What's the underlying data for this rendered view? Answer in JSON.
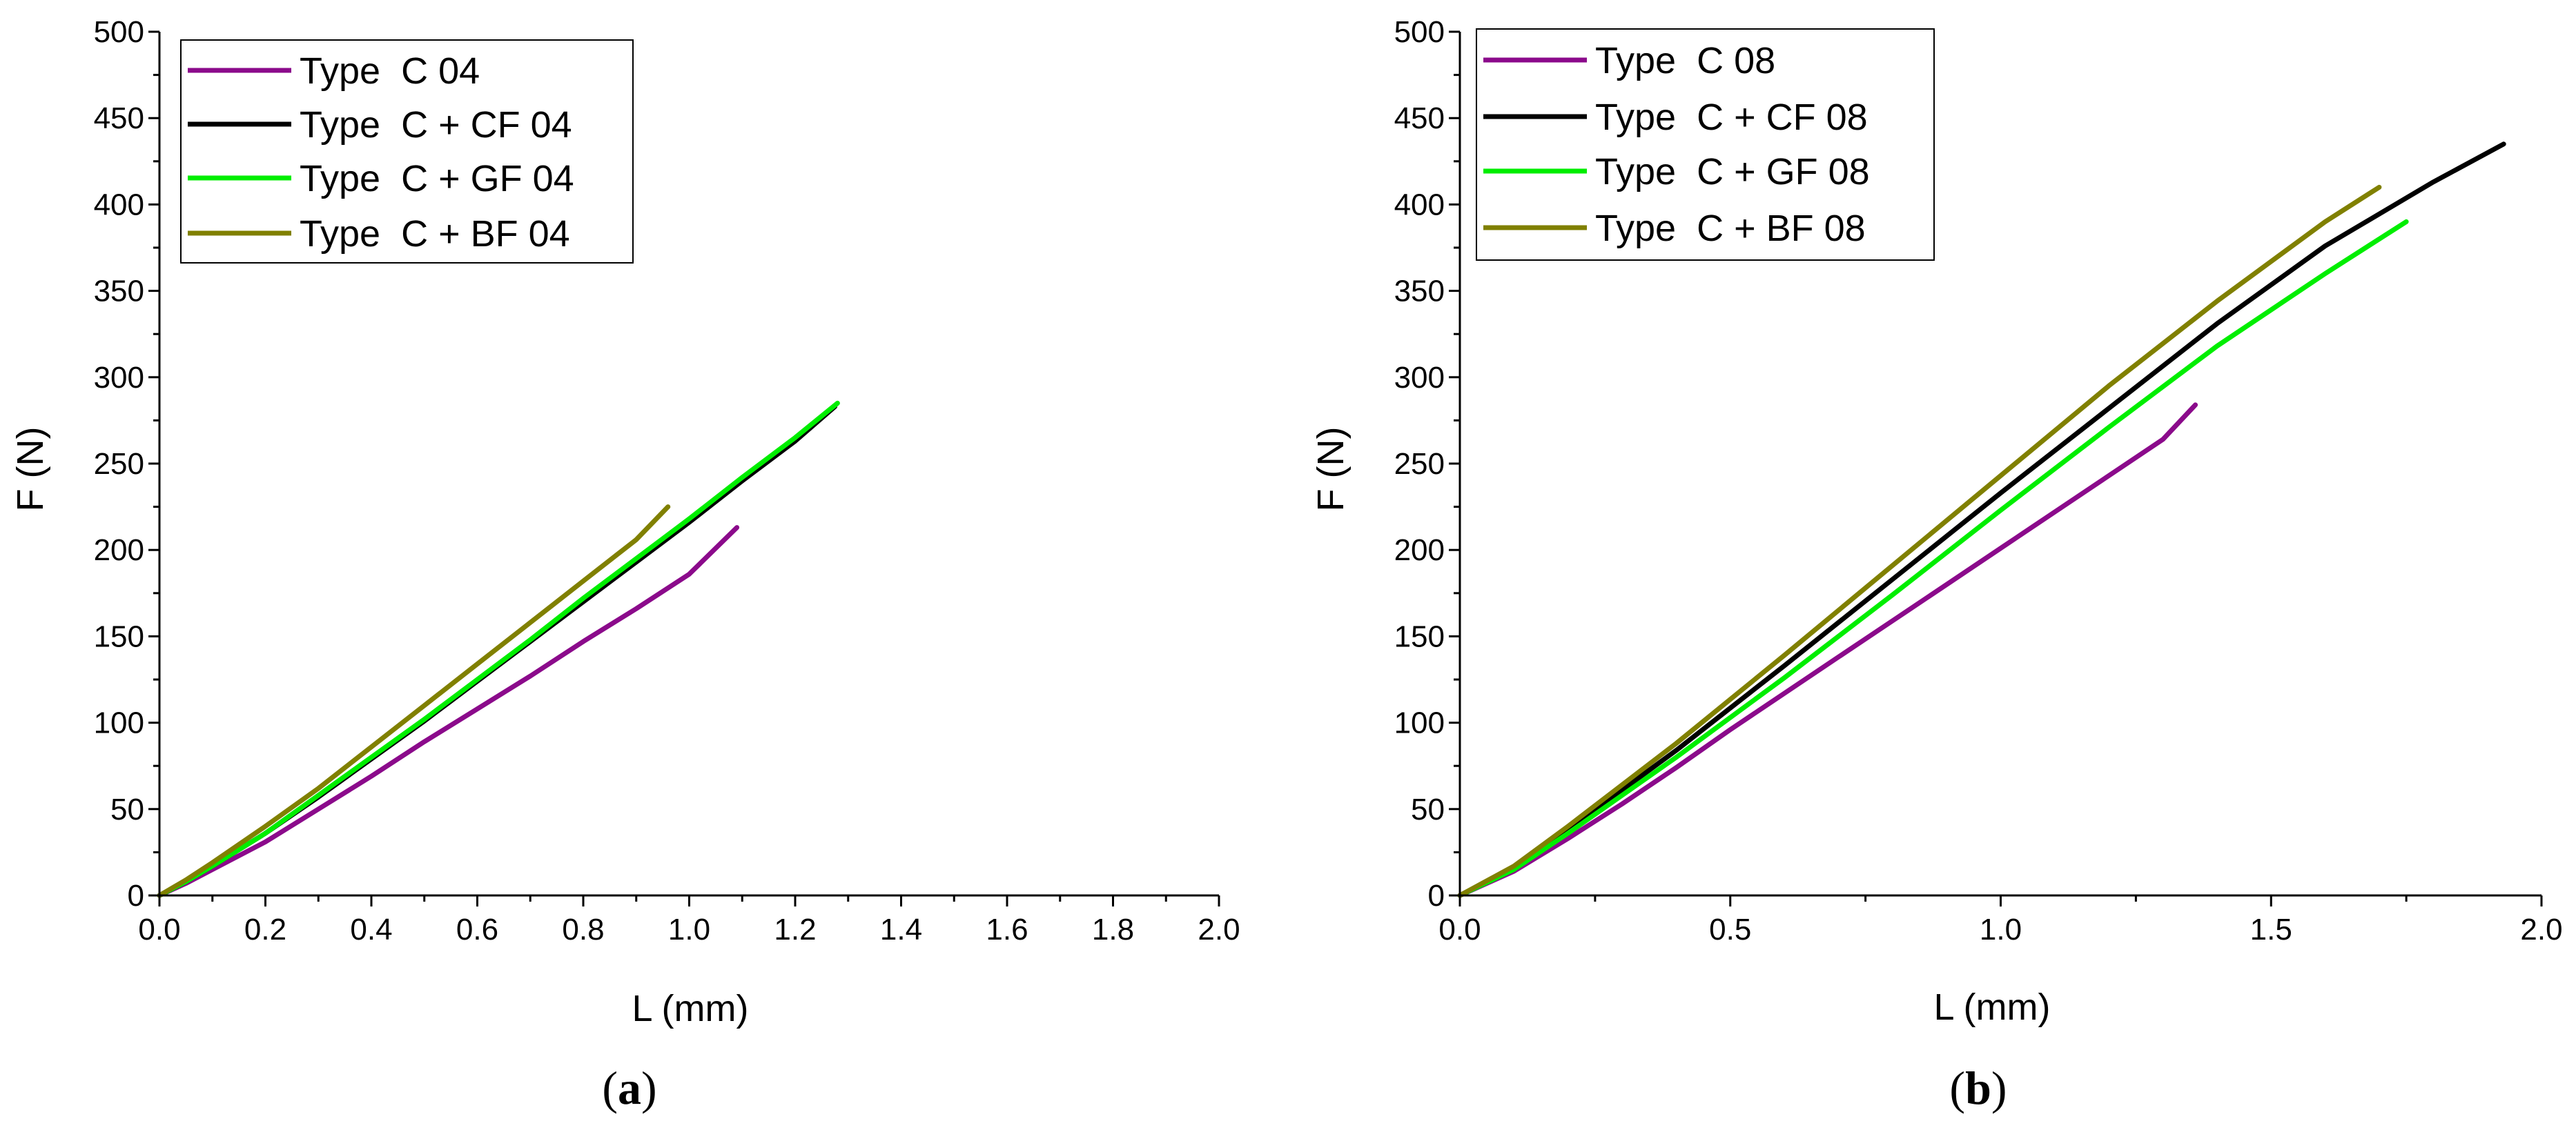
{
  "chart_data": [
    {
      "type": "line",
      "panel_label": "(a)",
      "panel_letter": "a",
      "xlabel": "L (mm)",
      "ylabel": "F (N)",
      "xlim": [
        0,
        2.0
      ],
      "ylim": [
        0,
        500
      ],
      "xticks": [
        "0.0",
        "0.2",
        "0.4",
        "0.6",
        "0.8",
        "1.0",
        "1.2",
        "1.4",
        "1.6",
        "1.8",
        "2.0"
      ],
      "xtick_values": [
        0,
        0.2,
        0.4,
        0.6,
        0.8,
        1.0,
        1.2,
        1.4,
        1.6,
        1.8,
        2.0
      ],
      "xminor_values": [
        0.1,
        0.3,
        0.5,
        0.7,
        0.9,
        1.1,
        1.3,
        1.5,
        1.7,
        1.9
      ],
      "yticks": [
        "0",
        "50",
        "100",
        "150",
        "200",
        "250",
        "300",
        "350",
        "400",
        "450",
        "500"
      ],
      "ytick_values": [
        0,
        50,
        100,
        150,
        200,
        250,
        300,
        350,
        400,
        450,
        500
      ],
      "yminor_values": [
        25,
        75,
        125,
        175,
        225,
        275,
        325,
        375,
        425,
        475
      ],
      "grid": false,
      "legend_position": "top-left",
      "series": [
        {
          "name": "Type  C 04",
          "color": "#8B0A8B",
          "x": [
            0,
            0.05,
            0.1,
            0.2,
            0.3,
            0.4,
            0.5,
            0.6,
            0.7,
            0.8,
            0.9,
            1.0,
            1.09
          ],
          "y": [
            0,
            7,
            15,
            31,
            50,
            69,
            89,
            108,
            127,
            147,
            166,
            186,
            213
          ]
        },
        {
          "name": "Type  C + CF 04",
          "color": "#000000",
          "x": [
            0,
            0.05,
            0.1,
            0.2,
            0.3,
            0.4,
            0.5,
            0.6,
            0.7,
            0.8,
            0.9,
            1.0,
            1.1,
            1.2,
            1.275
          ],
          "y": [
            0,
            8,
            17,
            36,
            57,
            79,
            101,
            124,
            147,
            170,
            193,
            216,
            240,
            263,
            283
          ]
        },
        {
          "name": "Type  C + GF 04",
          "color": "#00EE00",
          "x": [
            0,
            0.05,
            0.1,
            0.2,
            0.3,
            0.4,
            0.5,
            0.6,
            0.7,
            0.8,
            0.9,
            1.0,
            1.1,
            1.2,
            1.28
          ],
          "y": [
            0,
            8,
            17,
            36,
            58,
            80,
            102,
            125,
            148,
            172,
            195,
            218,
            242,
            265,
            285
          ]
        },
        {
          "name": "Type  C + BF 04",
          "color": "#808000",
          "x": [
            0,
            0.05,
            0.1,
            0.2,
            0.3,
            0.4,
            0.5,
            0.6,
            0.7,
            0.8,
            0.9,
            0.96
          ],
          "y": [
            0,
            9,
            19,
            40,
            62,
            86,
            110,
            134,
            158,
            182,
            206,
            225
          ]
        }
      ]
    },
    {
      "type": "line",
      "panel_label": "(b)",
      "panel_letter": "b",
      "xlabel": "L (mm)",
      "ylabel": "F (N)",
      "xlim": [
        0,
        2.0
      ],
      "ylim": [
        0,
        500
      ],
      "xticks": [
        "0.0",
        "0.5",
        "1.0",
        "1.5",
        "2.0"
      ],
      "xtick_values": [
        0,
        0.5,
        1.0,
        1.5,
        2.0
      ],
      "xminor_values": [
        0.25,
        0.75,
        1.25,
        1.75
      ],
      "yticks": [
        "0",
        "50",
        "100",
        "150",
        "200",
        "250",
        "300",
        "350",
        "400",
        "450",
        "500"
      ],
      "ytick_values": [
        0,
        50,
        100,
        150,
        200,
        250,
        300,
        350,
        400,
        450,
        500
      ],
      "yminor_values": [
        25,
        75,
        125,
        175,
        225,
        275,
        325,
        375,
        425,
        475
      ],
      "grid": false,
      "legend_position": "top-left",
      "series": [
        {
          "name": "Type  C 08",
          "color": "#8B0A8B",
          "x": [
            0,
            0.1,
            0.2,
            0.3,
            0.4,
            0.5,
            0.6,
            0.7,
            0.8,
            0.9,
            1.0,
            1.1,
            1.2,
            1.3,
            1.36
          ],
          "y": [
            0,
            14,
            33,
            53,
            74,
            96,
            117,
            138,
            159,
            180,
            201,
            222,
            243,
            264,
            284
          ]
        },
        {
          "name": "Type  C + CF 08",
          "color": "#000000",
          "x": [
            0,
            0.1,
            0.2,
            0.4,
            0.6,
            0.8,
            1.0,
            1.2,
            1.4,
            1.6,
            1.8,
            1.93
          ],
          "y": [
            0,
            16,
            38,
            84,
            133,
            183,
            233,
            282,
            331,
            376,
            413,
            435
          ]
        },
        {
          "name": "Type  C + GF 08",
          "color": "#00EE00",
          "x": [
            0,
            0.1,
            0.2,
            0.4,
            0.6,
            0.8,
            1.0,
            1.2,
            1.4,
            1.6,
            1.75
          ],
          "y": [
            0,
            15,
            36,
            80,
            126,
            174,
            223,
            271,
            318,
            360,
            390
          ]
        },
        {
          "name": "Type  C + BF 08",
          "color": "#808000",
          "x": [
            0,
            0.1,
            0.2,
            0.4,
            0.6,
            0.8,
            1.0,
            1.2,
            1.4,
            1.6,
            1.7
          ],
          "y": [
            0,
            17,
            40,
            88,
            139,
            191,
            243,
            295,
            344,
            390,
            410
          ]
        }
      ]
    }
  ]
}
